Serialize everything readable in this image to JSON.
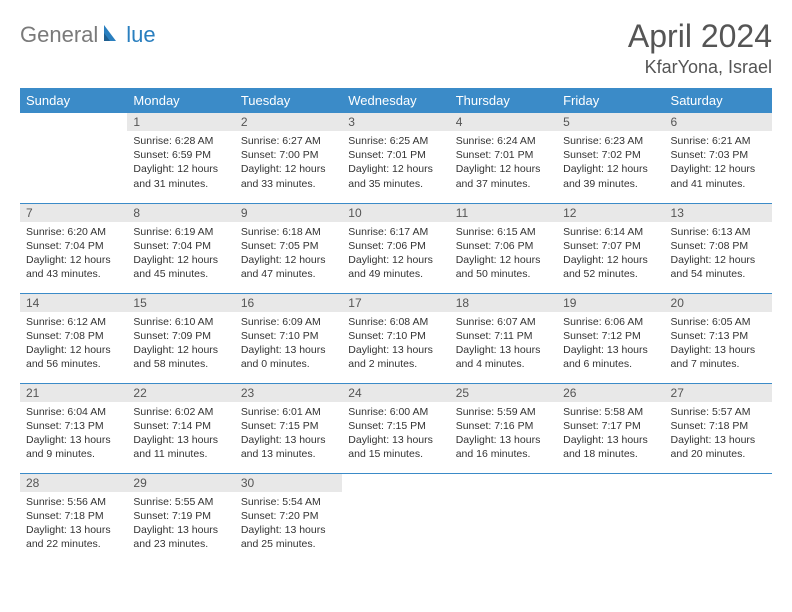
{
  "logo": {
    "text1": "General",
    "text2": "lue"
  },
  "title": "April 2024",
  "location": "KfarYona, Israel",
  "colors": {
    "header_bg": "#3b8bc8",
    "header_text": "#ffffff",
    "daynum_bg": "#e8e8e8",
    "border": "#3b8bc8",
    "logo_gray": "#7a7a7a",
    "logo_blue": "#2a7fbf"
  },
  "weekdays": [
    "Sunday",
    "Monday",
    "Tuesday",
    "Wednesday",
    "Thursday",
    "Friday",
    "Saturday"
  ],
  "weeks": [
    [
      null,
      {
        "n": "1",
        "sr": "Sunrise: 6:28 AM",
        "ss": "Sunset: 6:59 PM",
        "d1": "Daylight: 12 hours",
        "d2": "and 31 minutes."
      },
      {
        "n": "2",
        "sr": "Sunrise: 6:27 AM",
        "ss": "Sunset: 7:00 PM",
        "d1": "Daylight: 12 hours",
        "d2": "and 33 minutes."
      },
      {
        "n": "3",
        "sr": "Sunrise: 6:25 AM",
        "ss": "Sunset: 7:01 PM",
        "d1": "Daylight: 12 hours",
        "d2": "and 35 minutes."
      },
      {
        "n": "4",
        "sr": "Sunrise: 6:24 AM",
        "ss": "Sunset: 7:01 PM",
        "d1": "Daylight: 12 hours",
        "d2": "and 37 minutes."
      },
      {
        "n": "5",
        "sr": "Sunrise: 6:23 AM",
        "ss": "Sunset: 7:02 PM",
        "d1": "Daylight: 12 hours",
        "d2": "and 39 minutes."
      },
      {
        "n": "6",
        "sr": "Sunrise: 6:21 AM",
        "ss": "Sunset: 7:03 PM",
        "d1": "Daylight: 12 hours",
        "d2": "and 41 minutes."
      }
    ],
    [
      {
        "n": "7",
        "sr": "Sunrise: 6:20 AM",
        "ss": "Sunset: 7:04 PM",
        "d1": "Daylight: 12 hours",
        "d2": "and 43 minutes."
      },
      {
        "n": "8",
        "sr": "Sunrise: 6:19 AM",
        "ss": "Sunset: 7:04 PM",
        "d1": "Daylight: 12 hours",
        "d2": "and 45 minutes."
      },
      {
        "n": "9",
        "sr": "Sunrise: 6:18 AM",
        "ss": "Sunset: 7:05 PM",
        "d1": "Daylight: 12 hours",
        "d2": "and 47 minutes."
      },
      {
        "n": "10",
        "sr": "Sunrise: 6:17 AM",
        "ss": "Sunset: 7:06 PM",
        "d1": "Daylight: 12 hours",
        "d2": "and 49 minutes."
      },
      {
        "n": "11",
        "sr": "Sunrise: 6:15 AM",
        "ss": "Sunset: 7:06 PM",
        "d1": "Daylight: 12 hours",
        "d2": "and 50 minutes."
      },
      {
        "n": "12",
        "sr": "Sunrise: 6:14 AM",
        "ss": "Sunset: 7:07 PM",
        "d1": "Daylight: 12 hours",
        "d2": "and 52 minutes."
      },
      {
        "n": "13",
        "sr": "Sunrise: 6:13 AM",
        "ss": "Sunset: 7:08 PM",
        "d1": "Daylight: 12 hours",
        "d2": "and 54 minutes."
      }
    ],
    [
      {
        "n": "14",
        "sr": "Sunrise: 6:12 AM",
        "ss": "Sunset: 7:08 PM",
        "d1": "Daylight: 12 hours",
        "d2": "and 56 minutes."
      },
      {
        "n": "15",
        "sr": "Sunrise: 6:10 AM",
        "ss": "Sunset: 7:09 PM",
        "d1": "Daylight: 12 hours",
        "d2": "and 58 minutes."
      },
      {
        "n": "16",
        "sr": "Sunrise: 6:09 AM",
        "ss": "Sunset: 7:10 PM",
        "d1": "Daylight: 13 hours",
        "d2": "and 0 minutes."
      },
      {
        "n": "17",
        "sr": "Sunrise: 6:08 AM",
        "ss": "Sunset: 7:10 PM",
        "d1": "Daylight: 13 hours",
        "d2": "and 2 minutes."
      },
      {
        "n": "18",
        "sr": "Sunrise: 6:07 AM",
        "ss": "Sunset: 7:11 PM",
        "d1": "Daylight: 13 hours",
        "d2": "and 4 minutes."
      },
      {
        "n": "19",
        "sr": "Sunrise: 6:06 AM",
        "ss": "Sunset: 7:12 PM",
        "d1": "Daylight: 13 hours",
        "d2": "and 6 minutes."
      },
      {
        "n": "20",
        "sr": "Sunrise: 6:05 AM",
        "ss": "Sunset: 7:13 PM",
        "d1": "Daylight: 13 hours",
        "d2": "and 7 minutes."
      }
    ],
    [
      {
        "n": "21",
        "sr": "Sunrise: 6:04 AM",
        "ss": "Sunset: 7:13 PM",
        "d1": "Daylight: 13 hours",
        "d2": "and 9 minutes."
      },
      {
        "n": "22",
        "sr": "Sunrise: 6:02 AM",
        "ss": "Sunset: 7:14 PM",
        "d1": "Daylight: 13 hours",
        "d2": "and 11 minutes."
      },
      {
        "n": "23",
        "sr": "Sunrise: 6:01 AM",
        "ss": "Sunset: 7:15 PM",
        "d1": "Daylight: 13 hours",
        "d2": "and 13 minutes."
      },
      {
        "n": "24",
        "sr": "Sunrise: 6:00 AM",
        "ss": "Sunset: 7:15 PM",
        "d1": "Daylight: 13 hours",
        "d2": "and 15 minutes."
      },
      {
        "n": "25",
        "sr": "Sunrise: 5:59 AM",
        "ss": "Sunset: 7:16 PM",
        "d1": "Daylight: 13 hours",
        "d2": "and 16 minutes."
      },
      {
        "n": "26",
        "sr": "Sunrise: 5:58 AM",
        "ss": "Sunset: 7:17 PM",
        "d1": "Daylight: 13 hours",
        "d2": "and 18 minutes."
      },
      {
        "n": "27",
        "sr": "Sunrise: 5:57 AM",
        "ss": "Sunset: 7:18 PM",
        "d1": "Daylight: 13 hours",
        "d2": "and 20 minutes."
      }
    ],
    [
      {
        "n": "28",
        "sr": "Sunrise: 5:56 AM",
        "ss": "Sunset: 7:18 PM",
        "d1": "Daylight: 13 hours",
        "d2": "and 22 minutes."
      },
      {
        "n": "29",
        "sr": "Sunrise: 5:55 AM",
        "ss": "Sunset: 7:19 PM",
        "d1": "Daylight: 13 hours",
        "d2": "and 23 minutes."
      },
      {
        "n": "30",
        "sr": "Sunrise: 5:54 AM",
        "ss": "Sunset: 7:20 PM",
        "d1": "Daylight: 13 hours",
        "d2": "and 25 minutes."
      },
      null,
      null,
      null,
      null
    ]
  ]
}
